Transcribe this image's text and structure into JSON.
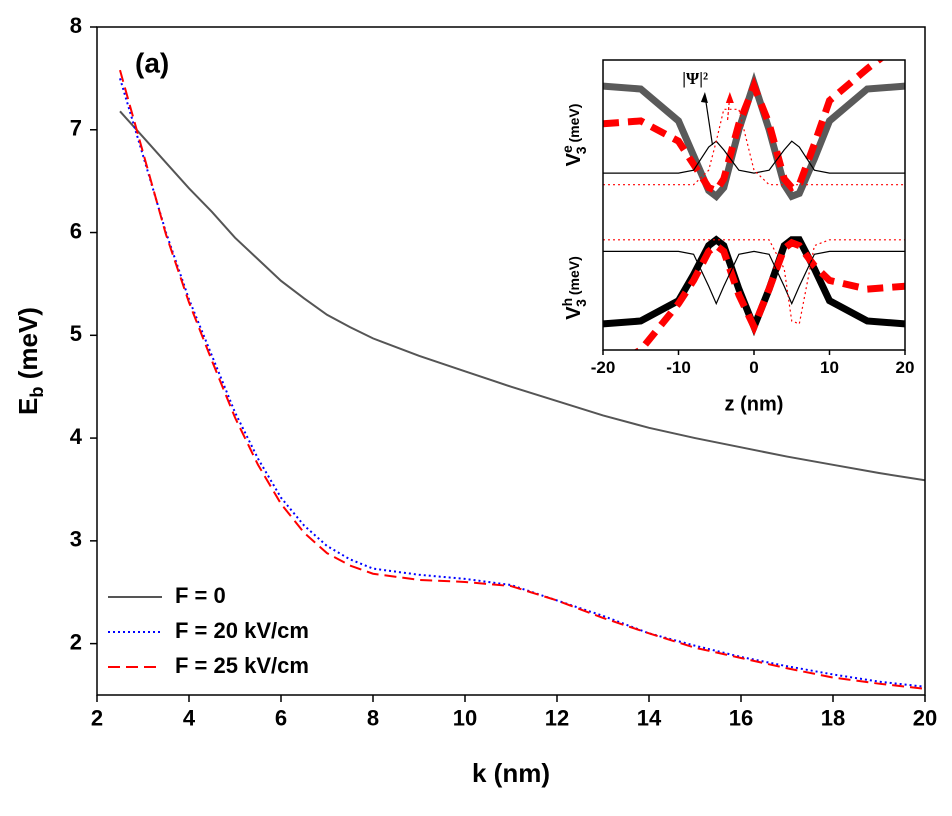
{
  "chart_data": [
    {
      "type": "line",
      "title": "(a)",
      "xlabel": "k (nm)",
      "ylabel": [
        "E",
        "b",
        " (meV)"
      ],
      "xlim": [
        2,
        20
      ],
      "xticks": [
        2,
        4,
        6,
        8,
        10,
        12,
        14,
        16,
        18,
        20
      ],
      "ylim": [
        1.5,
        8
      ],
      "yticks": [
        2,
        3,
        4,
        5,
        6,
        7,
        8
      ],
      "legend": "lower left",
      "x": [
        2.5,
        3,
        3.5,
        4,
        4.5,
        5,
        5.5,
        6,
        6.5,
        7,
        7.5,
        8,
        9,
        10,
        11,
        12,
        13,
        14,
        15,
        16,
        17,
        18,
        19,
        20
      ],
      "series": [
        {
          "name": "F = 0",
          "color": "#555555",
          "style": "solid",
          "values": [
            7.18,
            6.93,
            6.68,
            6.43,
            6.2,
            5.95,
            5.74,
            5.53,
            5.36,
            5.2,
            5.08,
            4.97,
            4.8,
            4.65,
            4.5,
            4.36,
            4.22,
            4.1,
            4.0,
            3.91,
            3.82,
            3.74,
            3.66,
            3.59
          ]
        },
        {
          "name": "F = 20 kV/cm",
          "color": "#0000ff",
          "style": "dotted",
          "values": [
            7.5,
            6.75,
            6.0,
            5.35,
            4.8,
            4.25,
            3.8,
            3.42,
            3.15,
            2.95,
            2.82,
            2.73,
            2.67,
            2.63,
            2.57,
            2.42,
            2.27,
            2.1,
            1.98,
            1.87,
            1.78,
            1.7,
            1.63,
            1.58
          ]
        },
        {
          "name": "F = 25 kV/cm",
          "color": "#ff0000",
          "style": "dashed",
          "values": [
            7.58,
            6.78,
            5.98,
            5.32,
            4.75,
            4.2,
            3.74,
            3.36,
            3.08,
            2.88,
            2.76,
            2.68,
            2.62,
            2.6,
            2.56,
            2.42,
            2.25,
            2.1,
            1.96,
            1.86,
            1.76,
            1.67,
            1.61,
            1.56
          ]
        }
      ]
    },
    {
      "type": "line",
      "xlabel": "z (nm)",
      "ylabels": [
        [
          "V",
          "e",
          "3",
          " (meV)"
        ],
        [
          "V",
          "h",
          "3",
          " (meV)"
        ]
      ],
      "annotation": "|Ψ|²",
      "xlim": [
        -20,
        20
      ],
      "xticks": [
        -20,
        -10,
        0,
        10,
        20
      ],
      "ylim": [
        0,
        1
      ],
      "x": [
        -20,
        -15,
        -10,
        -8,
        -6,
        -5,
        -4,
        -2,
        0,
        2,
        4,
        5,
        6,
        8,
        10,
        15,
        20
      ],
      "series": [
        {
          "color": "#5a5a5a",
          "style": "solid",
          "weight": "thick",
          "values": [
            0.91,
            0.9,
            0.79,
            0.67,
            0.55,
            0.53,
            0.56,
            0.76,
            0.92,
            0.76,
            0.57,
            0.53,
            0.54,
            0.66,
            0.79,
            0.9,
            0.91
          ]
        },
        {
          "color": "#ff0000",
          "style": "dashed",
          "weight": "thick",
          "values": [
            0.78,
            0.79,
            0.72,
            0.64,
            0.56,
            0.55,
            0.59,
            0.78,
            0.91,
            0.78,
            0.59,
            0.56,
            0.57,
            0.71,
            0.86,
            0.97,
            1.07
          ]
        },
        {
          "color": "#000000",
          "style": "solid",
          "weight": "thin",
          "values": [
            0.61,
            0.61,
            0.61,
            0.62,
            0.7,
            0.72,
            0.69,
            0.62,
            0.61,
            0.62,
            0.69,
            0.72,
            0.7,
            0.62,
            0.61,
            0.61,
            0.61
          ]
        },
        {
          "color": "#ff0000",
          "style": "dotted",
          "weight": "thin",
          "values": [
            0.57,
            0.57,
            0.57,
            0.57,
            0.62,
            0.72,
            0.83,
            0.83,
            0.62,
            0.57,
            0.57,
            0.57,
            0.57,
            0.57,
            0.57,
            0.57,
            0.57
          ]
        },
        {
          "color": "#000000",
          "style": "solid",
          "weight": "thick",
          "values": [
            0.09,
            0.1,
            0.17,
            0.26,
            0.36,
            0.38,
            0.36,
            0.21,
            0.08,
            0.21,
            0.36,
            0.38,
            0.38,
            0.28,
            0.17,
            0.1,
            0.09
          ]
        },
        {
          "color": "#ff0000",
          "style": "dashed",
          "weight": "thick",
          "values": [
            -0.07,
            0,
            0.16,
            0.24,
            0.34,
            0.36,
            0.34,
            0.19,
            0.08,
            0.21,
            0.35,
            0.37,
            0.36,
            0.29,
            0.24,
            0.21,
            0.22
          ]
        },
        {
          "color": "#000000",
          "style": "solid",
          "weight": "thin",
          "values": [
            0.34,
            0.34,
            0.34,
            0.33,
            0.22,
            0.16,
            0.22,
            0.33,
            0.34,
            0.33,
            0.22,
            0.16,
            0.22,
            0.33,
            0.34,
            0.34,
            0.34
          ]
        },
        {
          "color": "#ff0000",
          "style": "dotted",
          "weight": "thin",
          "values": [
            0.38,
            0.38,
            0.38,
            0.38,
            0.38,
            0.38,
            0.38,
            0.38,
            0.38,
            0.38,
            0.28,
            0.1,
            0.09,
            0.36,
            0.38,
            0.38,
            0.38
          ]
        }
      ]
    }
  ]
}
